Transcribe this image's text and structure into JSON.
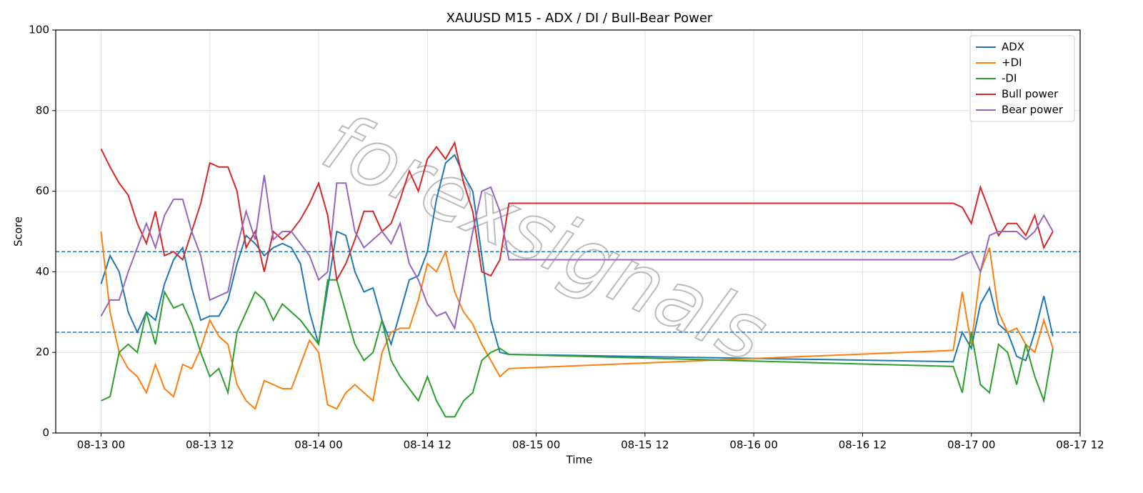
{
  "chart_data": {
    "type": "line",
    "title": "XAUUSD M15 - ADX / DI / Bull-Bear Power",
    "xlabel": "Time",
    "ylabel": "Score",
    "watermark": "forexsignals",
    "x": [
      "08-13 00",
      "08-13 01",
      "08-13 02",
      "08-13 03",
      "08-13 04",
      "08-13 05",
      "08-13 06",
      "08-13 07",
      "08-13 08",
      "08-13 09",
      "08-13 10",
      "08-13 11",
      "08-13 12",
      "08-13 13",
      "08-13 14",
      "08-13 15",
      "08-13 16",
      "08-13 17",
      "08-13 18",
      "08-13 19",
      "08-13 20",
      "08-13 21",
      "08-13 22",
      "08-13 23",
      "08-14 00",
      "08-14 01",
      "08-14 02",
      "08-14 03",
      "08-14 04",
      "08-14 05",
      "08-14 06",
      "08-14 07",
      "08-14 08",
      "08-14 09",
      "08-14 10",
      "08-14 11",
      "08-14 12",
      "08-14 13",
      "08-14 14",
      "08-14 15",
      "08-14 16",
      "08-14 17",
      "08-14 18",
      "08-14 19",
      "08-14 20",
      "08-14 21",
      "08-16 22",
      "08-16 23",
      "08-17 00",
      "08-17 01",
      "08-17 02",
      "08-17 03",
      "08-17 04",
      "08-17 05",
      "08-17 06",
      "08-17 07",
      "08-17 08",
      "08-17 09"
    ],
    "series": [
      {
        "name": "ADX",
        "color": "#1f77b4",
        "values": [
          37,
          44,
          40,
          30,
          25,
          30,
          28,
          37,
          43,
          46,
          36,
          28,
          29,
          29,
          33,
          42,
          49,
          47,
          44,
          46,
          47,
          46,
          42,
          30,
          22,
          36,
          50,
          49,
          40,
          35,
          36,
          28,
          22,
          30,
          38,
          39,
          45,
          58,
          67,
          69,
          64,
          60,
          44,
          28,
          20,
          19.5,
          17.7,
          25,
          21,
          32,
          36,
          27,
          25,
          19,
          18,
          25,
          34,
          24
        ]
      },
      {
        "name": "+DI",
        "color": "#ff7f0e",
        "values": [
          50,
          30,
          20,
          16,
          14,
          10,
          17,
          11,
          9,
          17,
          16,
          21,
          28,
          24,
          22,
          12,
          8,
          6,
          13,
          12,
          11,
          11,
          17,
          23,
          20,
          7,
          6,
          10,
          12,
          10,
          8,
          20,
          25,
          26,
          26,
          33,
          42,
          40,
          45,
          35,
          30,
          27,
          22,
          18,
          14,
          16,
          20.5,
          35,
          22,
          40,
          46,
          30,
          25,
          26,
          22,
          20,
          28,
          21
        ]
      },
      {
        "name": "-DI",
        "color": "#2ca02c",
        "values": [
          8,
          9,
          20,
          22,
          20,
          30,
          22,
          35,
          31,
          32,
          27,
          20,
          14,
          16,
          10,
          25,
          30,
          35,
          33,
          28,
          32,
          30,
          28,
          25,
          22,
          38,
          38,
          30,
          22,
          18,
          20,
          28,
          18,
          14,
          11,
          8,
          14,
          8,
          4,
          4,
          8,
          10,
          18,
          20,
          21,
          19.5,
          16.5,
          10,
          25,
          12,
          10,
          22,
          20,
          12,
          22,
          14,
          8,
          21
        ]
      },
      {
        "name": "Bull power",
        "color": "#d62728",
        "values": [
          70.5,
          66,
          62,
          59,
          52,
          47,
          55,
          44,
          45,
          43,
          50,
          57,
          67,
          66,
          66,
          60,
          46,
          50,
          40,
          50,
          48,
          50,
          53,
          57,
          62,
          54,
          38,
          42,
          48,
          55,
          55,
          50,
          52,
          58,
          65,
          60,
          68,
          71,
          68,
          72,
          62,
          55,
          40,
          39,
          43,
          57,
          57,
          56,
          52,
          61,
          55,
          49,
          52,
          52,
          49,
          54,
          46,
          50
        ]
      },
      {
        "name": "Bear power",
        "color": "#9467bd",
        "values": [
          29,
          33,
          33,
          40,
          46,
          52,
          46,
          54,
          58,
          58,
          50,
          44,
          33,
          34,
          35,
          46,
          55,
          48,
          64,
          48,
          50,
          50,
          47,
          44,
          38,
          40,
          62,
          62,
          50,
          46,
          48,
          50,
          47,
          52,
          42,
          38,
          32,
          29,
          30,
          26,
          38,
          50,
          60,
          61,
          55,
          43,
          43,
          44,
          45,
          40,
          49,
          50,
          50,
          50,
          48,
          50,
          54,
          50
        ]
      }
    ],
    "hlines": [
      45,
      25
    ],
    "hline_color": "#1f77b4",
    "xlim": [
      "08-12 19",
      "08-17 12"
    ],
    "xticks": [
      "08-13 00",
      "08-13 12",
      "08-14 00",
      "08-14 12",
      "08-15 00",
      "08-15 12",
      "08-16 00",
      "08-16 12",
      "08-17 00",
      "08-17 12"
    ],
    "ylim": [
      0,
      100
    ],
    "yticks": [
      0,
      20,
      40,
      60,
      80,
      100
    ],
    "grid": true,
    "legend": "upper right"
  }
}
